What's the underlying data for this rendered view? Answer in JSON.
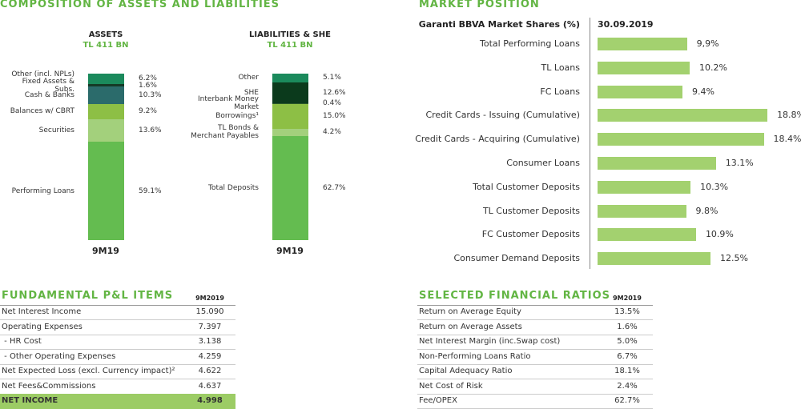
{
  "sections": {
    "composition_title": "COMPOSITION OF ASSETS AND LIABILITIES",
    "market_title": "MARKET POSITION"
  },
  "chart_data": [
    {
      "type": "stacked-bar",
      "title": "ASSETS",
      "subtitle": "TL 411 BN",
      "categories": [
        "9M19"
      ],
      "series": [
        {
          "name": "Performing Loans",
          "color": "#64bc50",
          "values": [
            59.1
          ],
          "value_labels": [
            "59.1%"
          ]
        },
        {
          "name": "Securities",
          "color": "#a3d07c",
          "values": [
            13.6
          ],
          "value_labels": [
            "13.6%"
          ]
        },
        {
          "name": "Balances w/ CBRT",
          "color": "#8dbf45",
          "values": [
            9.2
          ],
          "value_labels": [
            "9.2%"
          ]
        },
        {
          "name": "Cash & Banks",
          "color": "#2b6b6b",
          "values": [
            10.3
          ],
          "value_labels": [
            "10.3%"
          ]
        },
        {
          "name": "Fixed Assets & Subs.",
          "color": "#153a26",
          "values": [
            1.6
          ],
          "value_labels": [
            "1.6%"
          ]
        },
        {
          "name": "Other (incl. NPLs)",
          "color": "#1b8a5c",
          "values": [
            6.2
          ],
          "value_labels": [
            "6.2%"
          ]
        }
      ]
    },
    {
      "type": "stacked-bar",
      "title": "LIABILITIES & SHE",
      "subtitle": "TL 411 BN",
      "categories": [
        "9M19"
      ],
      "series": [
        {
          "name": "Total Deposits",
          "color": "#64bc50",
          "values": [
            62.7
          ],
          "value_labels": [
            "62.7%"
          ]
        },
        {
          "name": "TL Bonds & Merchant Payables",
          "color": "#a3d07c",
          "values": [
            4.2
          ],
          "value_labels": [
            "4.2%"
          ]
        },
        {
          "name": "Borrowings¹",
          "color": "#8dbf45",
          "values": [
            15.0
          ],
          "value_labels": [
            "15.0%"
          ]
        },
        {
          "name": "Interbank Money Market",
          "color": "#2b5a2b",
          "values": [
            0.4
          ],
          "value_labels": [
            "0.4%"
          ]
        },
        {
          "name": "SHE",
          "color": "#0b3a1c",
          "values": [
            12.6
          ],
          "value_labels": [
            "12.6%"
          ]
        },
        {
          "name": "Other",
          "color": "#1b8a5c",
          "values": [
            5.1
          ],
          "value_labels": [
            "5.1%"
          ]
        }
      ]
    },
    {
      "type": "hbar",
      "title": "Garanti BBVA Market Shares (%)",
      "subtitle": "30.09.2019",
      "color": "#a3d16f",
      "categories": [
        "Total Performing Loans",
        "TL Loans",
        "FC Loans",
        "Credit Cards - Issuing (Cumulative)",
        "Credit Cards - Acquiring (Cumulative)",
        "Consumer Loans",
        "Total Customer Deposits",
        "TL Customer Deposits",
        "FC Customer Deposits",
        "Consumer Demand Deposits"
      ],
      "values": [
        9.9,
        10.2,
        9.4,
        18.8,
        18.4,
        13.1,
        10.3,
        9.8,
        10.9,
        12.5
      ],
      "value_labels": [
        "9,9%",
        "10.2%",
        "9.4%",
        "18.8%",
        "18.4%",
        "13.1%",
        "10.3%",
        "9.8%",
        "10.9%",
        "12.5%"
      ]
    }
  ],
  "pl_table": {
    "title": "FUNDAMENTAL P&L ITEMS",
    "header": "9M2019",
    "rows": [
      [
        "Net Interest Income",
        "15.090"
      ],
      [
        "Operating Expenses",
        "7.397"
      ],
      [
        " - HR Cost",
        "3.138"
      ],
      [
        " - Other Operating Expenses",
        "4.259"
      ],
      [
        "Net Expected Loss (excl. Currency impact)²",
        "4.622"
      ],
      [
        "Net Fees&Commissions",
        "4.637"
      ],
      [
        "NET INCOME",
        "4.998"
      ]
    ]
  },
  "ratios_table": {
    "title": "SELECTED FINANCIAL RATIOS",
    "header": "9M2019",
    "rows": [
      [
        "Return on Average Equity",
        "13.5%"
      ],
      [
        "Return on Average Assets",
        "1.6%"
      ],
      [
        "Net Interest Margin (inc.Swap cost)",
        "5.0%"
      ],
      [
        "Non-Performing Loans Ratio",
        "6.7%"
      ],
      [
        "Capital Adequacy Ratio",
        "18.1%"
      ],
      [
        "Net Cost of Risk",
        "2.4%"
      ],
      [
        "Fee/OPEX",
        "62.7%"
      ]
    ]
  }
}
